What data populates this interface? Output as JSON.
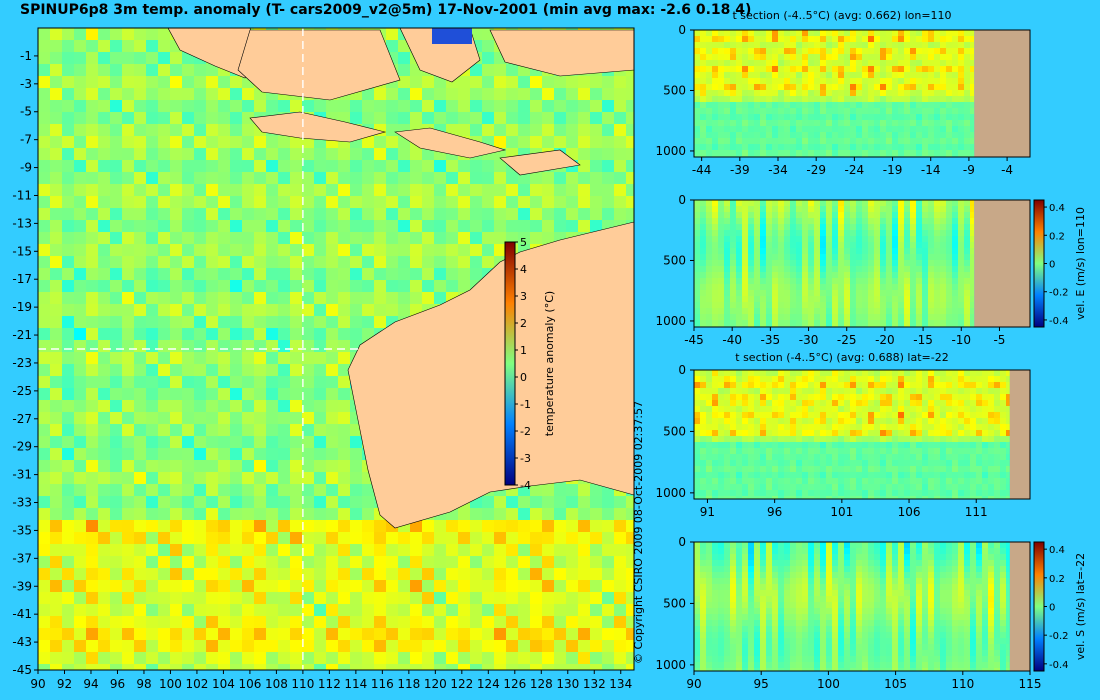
{
  "title": "SPINUP6p8 3m temp. anomaly (T- cars2009_v2@5m) 17-Nov-2001 (min avg max: -2.6 0.18 4)",
  "copyright": "© Copyright CSIRO 2009   08-Oct-2009 02:37:57",
  "colors": {
    "background": "#33ccff",
    "land": "#ffcc99",
    "land_section": "#c8a888",
    "section_line": "#ffffff"
  },
  "chart_data": [
    {
      "type": "heatmap",
      "id": "map",
      "title": "SPINUP6p8 3m temp. anomaly (T- cars2009_v2@5m) 17-Nov-2001 (min avg max: -2.6 0.18 4)",
      "x_ticks": [
        90,
        92,
        94,
        96,
        98,
        100,
        102,
        104,
        106,
        108,
        110,
        112,
        114,
        116,
        118,
        120,
        122,
        124,
        126,
        128,
        130,
        132,
        134
      ],
      "y_ticks": [
        -1,
        -3,
        -5,
        -7,
        -9,
        -11,
        -13,
        -15,
        -17,
        -19,
        -21,
        -23,
        -25,
        -27,
        -29,
        -31,
        -33,
        -35,
        -37,
        -39,
        -41,
        -43,
        -45
      ],
      "xlim": [
        90,
        135
      ],
      "ylim": [
        -45,
        1
      ],
      "section_lon": 110,
      "section_lat": -22,
      "colorbar": {
        "label": "temperature anomaly (°C)",
        "ticks": [
          5,
          4,
          3,
          2,
          1,
          0,
          -1,
          -2,
          -3,
          -4
        ],
        "range": [
          -4,
          5
        ]
      }
    },
    {
      "type": "heatmap",
      "id": "p1",
      "title": "t section (-4..5°C) (avg: 0.662) lon=110",
      "x_ticks": [
        -44,
        -39,
        -34,
        -29,
        -24,
        -19,
        -14,
        -9,
        -4
      ],
      "y_ticks": [
        0,
        500,
        1000
      ],
      "xlim": [
        -45,
        -1
      ],
      "ylim": [
        1050,
        0
      ],
      "land_from": -8.3
    },
    {
      "type": "heatmap",
      "id": "p2",
      "title": "",
      "x_ticks": [
        -45,
        -40,
        -35,
        -30,
        -25,
        -20,
        -15,
        -10,
        -5
      ],
      "y_ticks": [
        0,
        500,
        1000
      ],
      "xlim": [
        -45,
        -1
      ],
      "ylim": [
        1050,
        0
      ],
      "land_from": -8.3,
      "colorbar": {
        "label": "vel. E (m/s) lon=110",
        "ticks": [
          "0.4",
          "0.2",
          "0",
          "-0.2",
          "-0.4"
        ],
        "range": [
          -0.45,
          0.45
        ]
      }
    },
    {
      "type": "heatmap",
      "id": "p3",
      "title": "t section (-4..5°C) (avg: 0.688) lat=-22",
      "x_ticks": [
        91,
        96,
        101,
        106,
        111
      ],
      "y_ticks": [
        0,
        500,
        1000
      ],
      "xlim": [
        90,
        115
      ],
      "ylim": [
        1050,
        0
      ],
      "land_from": 113.5
    },
    {
      "type": "heatmap",
      "id": "p4",
      "title": "",
      "x_ticks": [
        90,
        95,
        100,
        105,
        110,
        115
      ],
      "y_ticks": [
        0,
        500,
        1000
      ],
      "xlim": [
        90,
        115
      ],
      "ylim": [
        1050,
        0
      ],
      "land_from": 113.5,
      "colorbar": {
        "label": "vel. S (m/s) lat=-22",
        "ticks": [
          "0.4",
          "0.2",
          "0",
          "-0.2",
          "-0.4"
        ],
        "range": [
          -0.45,
          0.45
        ]
      }
    }
  ]
}
